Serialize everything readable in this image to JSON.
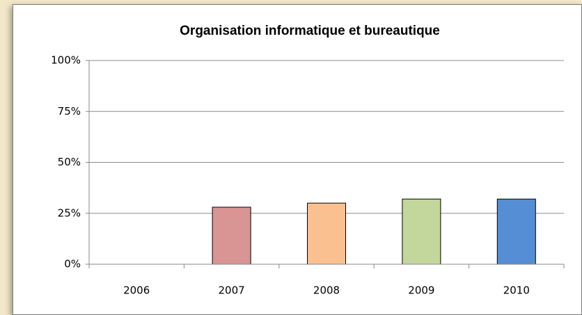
{
  "chart_data": {
    "type": "bar",
    "title": "Organisation informatique et bureautique",
    "categories": [
      "2006",
      "2007",
      "2008",
      "2009",
      "2010"
    ],
    "values": [
      0,
      28,
      30,
      32,
      32
    ],
    "colors": [
      "#4f81bd",
      "#d99594",
      "#fac090",
      "#c3d69b",
      "#558ed5"
    ],
    "ylim": [
      0,
      100
    ],
    "yticks": [
      {
        "value": 0,
        "label": "0%"
      },
      {
        "value": 25,
        "label": "25%"
      },
      {
        "value": 50,
        "label": "50%"
      },
      {
        "value": 75,
        "label": "75%"
      },
      {
        "value": 100,
        "label": "100%"
      }
    ],
    "grid": true
  }
}
